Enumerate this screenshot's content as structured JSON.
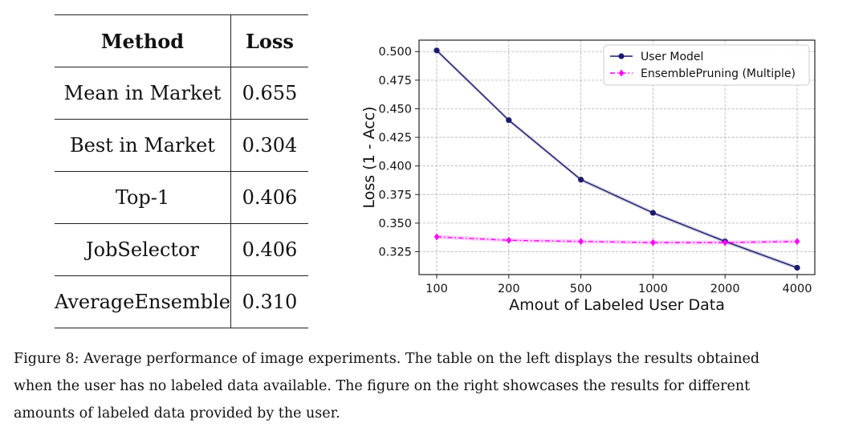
{
  "table": {
    "headers": {
      "method": "Method",
      "loss": "Loss"
    },
    "rows": [
      {
        "method": "Mean in Market",
        "loss": "0.655"
      },
      {
        "method": "Best in Market",
        "loss": "0.304"
      },
      {
        "method": "Top-1",
        "loss": "0.406"
      },
      {
        "method": "JobSelector",
        "loss": "0.406"
      },
      {
        "method": "AverageEnsemble",
        "loss": "0.310"
      }
    ]
  },
  "chart_data": {
    "type": "line",
    "categories": [
      "100",
      "200",
      "500",
      "1000",
      "2000",
      "4000"
    ],
    "series": [
      {
        "name": "User Model",
        "values": [
          0.501,
          0.44,
          0.388,
          0.359,
          0.334,
          0.311
        ],
        "color": "#1a1a6e",
        "marker": "circle",
        "style": "solid"
      },
      {
        "name": "EnsemblePruning (Multiple)",
        "values": [
          0.338,
          0.335,
          0.334,
          0.333,
          0.333,
          0.334
        ],
        "color": "#ff00ff",
        "marker": "diamond",
        "style": "dashdot"
      }
    ],
    "xlabel": "Amout of Labeled User Data",
    "ylabel": "Loss (1 - Acc)",
    "yticks": [
      "0.325",
      "0.350",
      "0.375",
      "0.400",
      "0.425",
      "0.450",
      "0.475",
      "0.500"
    ],
    "ylim": [
      0.305,
      0.51
    ],
    "grid": true,
    "legend": "top-right"
  },
  "caption": {
    "line1": "Figure 8: Average performance of image experiments. The table on the left displays the results obtained",
    "line2": "when the user has no labeled data available. The figure on the right showcases the results for different",
    "line3": "amounts of labeled data provided by the user."
  }
}
